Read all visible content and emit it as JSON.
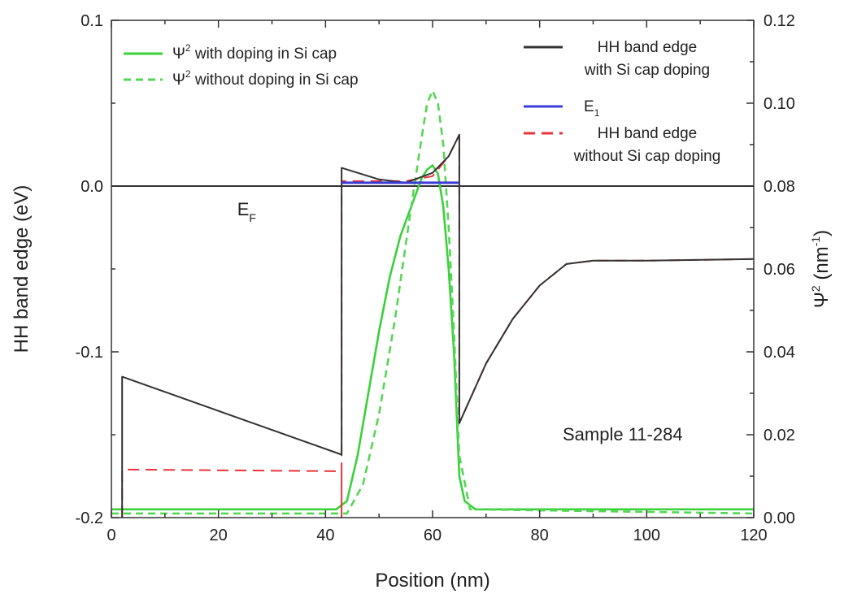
{
  "chart_data": {
    "type": "line",
    "xlabel": "Position (nm)",
    "ylabel_left": "HH band edge (eV)",
    "ylabel_right": "Ψ",
    "ylabel_right_sup": "2",
    "ylabel_right_units_pre": " (nm",
    "ylabel_right_units_sup": "-1",
    "ylabel_right_units_post": ")",
    "xlim": [
      0,
      120
    ],
    "ylim_left": [
      -0.2,
      0.1
    ],
    "ylim_right": [
      0.0,
      0.12
    ],
    "x_ticks": [
      0,
      20,
      40,
      60,
      80,
      100,
      120
    ],
    "x_tick_labels": [
      "0",
      "20",
      "40",
      "60",
      "80",
      "100",
      "120"
    ],
    "y_left_ticks": [
      -0.2,
      -0.1,
      0.0,
      0.1
    ],
    "y_left_tick_labels": [
      "-0.2",
      "-0.1",
      "0.0",
      "0.1"
    ],
    "y_right_ticks": [
      0.0,
      0.02,
      0.04,
      0.06,
      0.08,
      0.1,
      0.12
    ],
    "y_right_tick_labels": [
      "0.00",
      "0.02",
      "0.04",
      "0.06",
      "0.08",
      "0.10",
      "0.12"
    ],
    "grid": false,
    "annotations": {
      "fermi_main": "E",
      "fermi_sub": "F",
      "sample": "Sample 11-284"
    },
    "series": [
      {
        "name": "HH band edge with Si cap doping",
        "axis": "left",
        "color": "#333333",
        "dash": "solid",
        "x": [
          2,
          2,
          43,
          43,
          50,
          55,
          60,
          63,
          65,
          65,
          70,
          75,
          80,
          85,
          90,
          100,
          120
        ],
        "y": [
          -0.2,
          -0.115,
          -0.162,
          0.011,
          0.004,
          0.002,
          0.008,
          0.018,
          0.031,
          -0.143,
          -0.107,
          -0.08,
          -0.06,
          -0.047,
          -0.045,
          -0.045,
          -0.044
        ]
      },
      {
        "name": "HH band edge without Si cap doping",
        "axis": "left",
        "color": "#e8343a",
        "dash": "dashed",
        "x": [
          2,
          2,
          43,
          43,
          43,
          55,
          60,
          63,
          65,
          65,
          70,
          75,
          80,
          85,
          90,
          100,
          120
        ],
        "y": [
          -0.2,
          -0.171,
          -0.172,
          -0.2,
          0.003,
          0.003,
          0.006,
          0.018,
          0.031,
          -0.143,
          -0.107,
          -0.08,
          -0.06,
          -0.047,
          -0.045,
          -0.045,
          -0.044
        ]
      },
      {
        "name": "E",
        "name_sub": "1",
        "axis": "left",
        "color": "#3b3bd6",
        "dash": "solid",
        "x": [
          43,
          65
        ],
        "y": [
          0.002,
          0.002
        ]
      },
      {
        "name": "Ψ",
        "name_sup": "2",
        "name_rest": " with doping in Si cap",
        "axis": "right",
        "color": "#3ad13a",
        "dash": "solid",
        "x": [
          0,
          42,
          44,
          46,
          48,
          50,
          52,
          54,
          56,
          58,
          59,
          60,
          61,
          62,
          63,
          64,
          65,
          66,
          68,
          120
        ],
        "y": [
          0.002,
          0.002,
          0.004,
          0.015,
          0.03,
          0.045,
          0.058,
          0.068,
          0.075,
          0.082,
          0.084,
          0.085,
          0.083,
          0.075,
          0.06,
          0.04,
          0.01,
          0.004,
          0.002,
          0.002
        ]
      },
      {
        "name": "Ψ",
        "name_sup": "2",
        "name_rest": " without doping in Si cap",
        "axis": "right",
        "color": "#56d656",
        "dash": "dashed",
        "x": [
          0,
          44,
          47,
          50,
          53,
          56,
          58,
          59,
          60,
          61,
          62,
          63,
          64,
          65,
          67,
          120
        ],
        "y": [
          0.001,
          0.001,
          0.008,
          0.025,
          0.048,
          0.075,
          0.092,
          0.1,
          0.103,
          0.1,
          0.09,
          0.07,
          0.045,
          0.015,
          0.002,
          0.001
        ]
      }
    ],
    "legend_left": [
      {
        "series": 3,
        "main": "Ψ",
        "sup": "2",
        "rest": " with doping in Si cap"
      },
      {
        "series": 4,
        "main": "Ψ",
        "sup": "2",
        "rest": " without doping in Si cap"
      }
    ],
    "legend_right": [
      {
        "series": 0,
        "line1": "HH band edge",
        "line2": "with Si cap doping"
      },
      {
        "series": 2,
        "line1": "E",
        "sub": "1",
        "line2": ""
      },
      {
        "series": 1,
        "line1": "HH band edge",
        "line2": "without Si cap doping"
      }
    ]
  }
}
